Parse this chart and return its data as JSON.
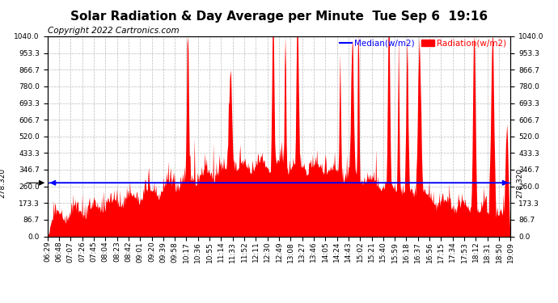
{
  "title": "Solar Radiation & Day Average per Minute  Tue Sep 6  19:16",
  "copyright_text": "Copyright 2022 Cartronics.com",
  "legend_median_label": "Median(w/m2)",
  "legend_radiation_label": "Radiation(w/m2)",
  "median_value": 278.32,
  "median_label": "278.320",
  "y_tick_values": [
    0.0,
    86.7,
    173.3,
    260.0,
    346.7,
    433.3,
    520.0,
    606.7,
    693.3,
    780.0,
    866.7,
    953.3,
    1040.0
  ],
  "y_tick_labels": [
    "0.0",
    "86.7",
    "173.3",
    "260.0",
    "346.7",
    "433.3",
    "520.0",
    "606.7",
    "693.3",
    "780.0",
    "866.7",
    "953.3",
    "1040.0"
  ],
  "y_max": 1040.0,
  "y_min": 0.0,
  "fill_color": "#FF0000",
  "line_color": "#FF0000",
  "median_line_color": "#0000FF",
  "background_color": "#FFFFFF",
  "grid_color": "#BBBBBB",
  "title_fontsize": 11,
  "tick_fontsize": 6.5,
  "copyright_fontsize": 7.5,
  "legend_fontsize": 7.5
}
